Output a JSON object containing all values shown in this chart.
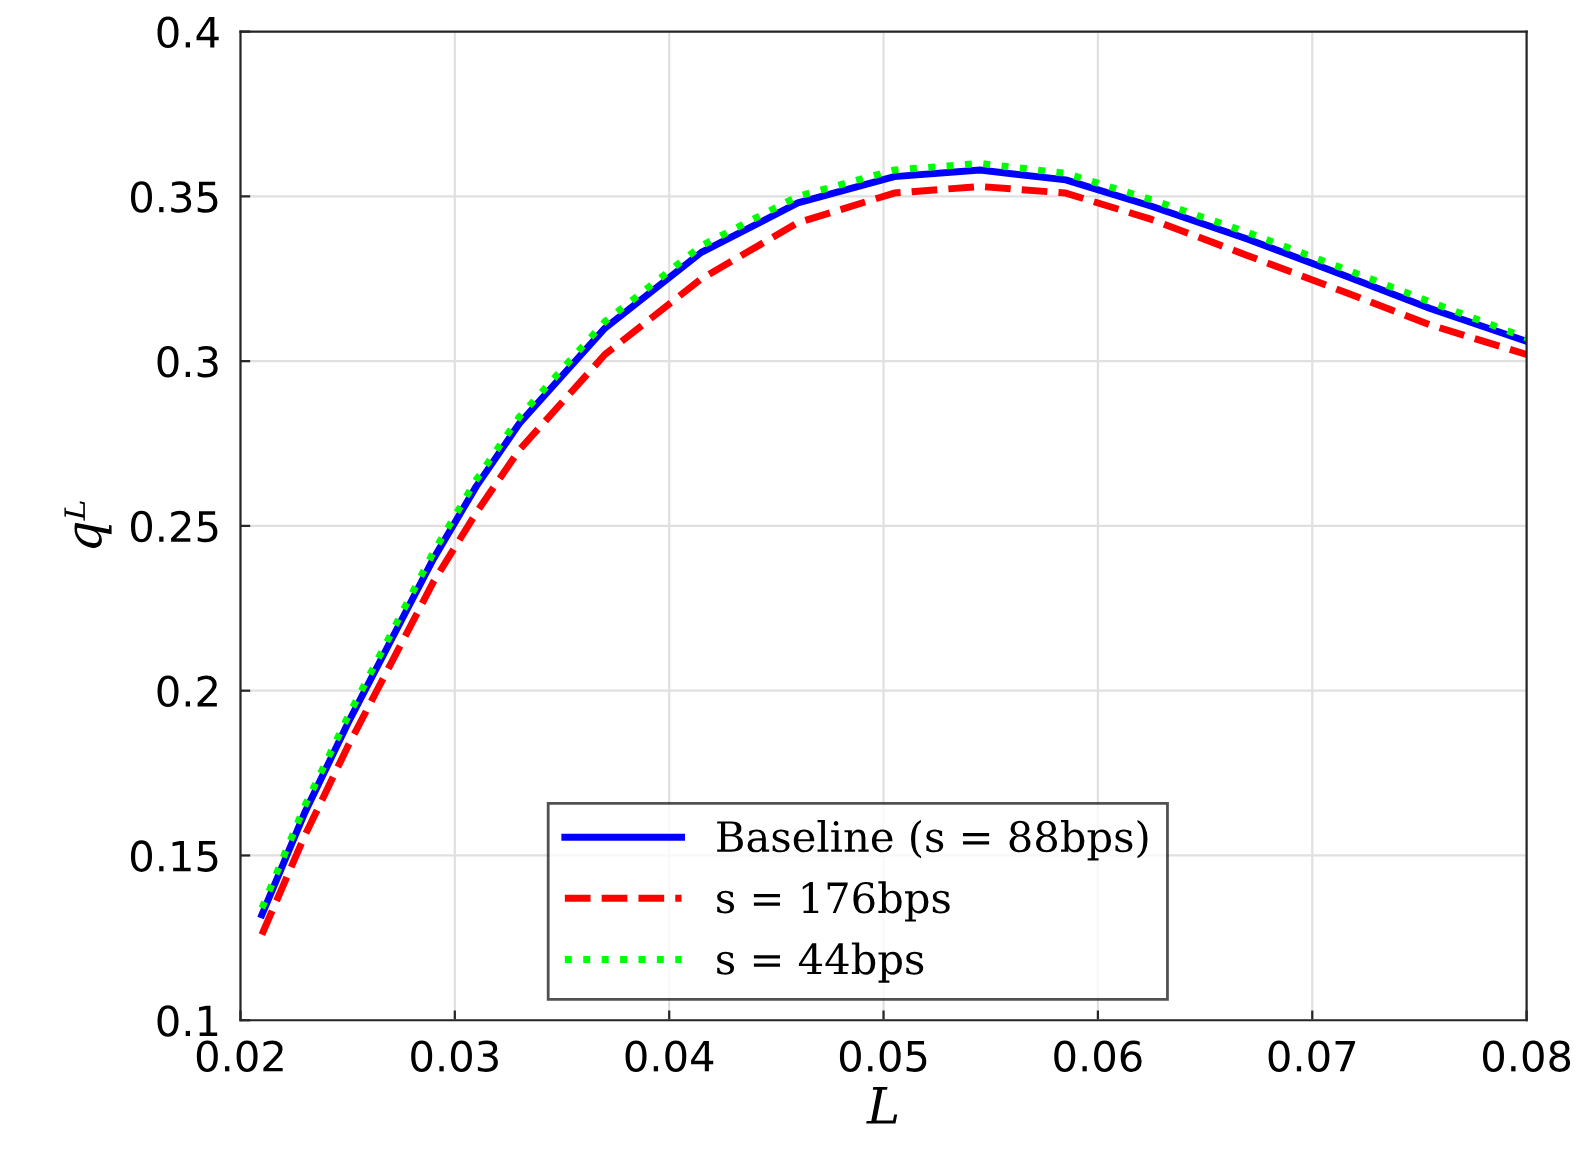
{
  "chart_data": {
    "type": "line",
    "xlabel": "L",
    "ylabel": "qᴸ",
    "x": [
      0.021,
      0.023,
      0.025,
      0.027,
      0.029,
      0.031,
      0.033,
      0.037,
      0.0415,
      0.046,
      0.0505,
      0.0545,
      0.0585,
      0.0625,
      0.067,
      0.0715,
      0.0755,
      0.08
    ],
    "series": [
      {
        "name": "Baseline (s = 88bps)",
        "color": "#0000ff",
        "line_style": "solid",
        "values": [
          0.132,
          0.163,
          0.19,
          0.215,
          0.24,
          0.262,
          0.281,
          0.31,
          0.333,
          0.348,
          0.356,
          0.358,
          0.355,
          0.347,
          0.337,
          0.326,
          0.316,
          0.306
        ]
      },
      {
        "name": "s = 176bps",
        "color": "#ff0000",
        "line_style": "dashed",
        "values": [
          0.126,
          0.156,
          0.183,
          0.208,
          0.233,
          0.254,
          0.273,
          0.302,
          0.325,
          0.342,
          0.351,
          0.353,
          0.351,
          0.343,
          0.332,
          0.321,
          0.311,
          0.302
        ]
      },
      {
        "name": "s = 44bps",
        "color": "#00ff00",
        "line_style": "dotted",
        "values": [
          0.134,
          0.165,
          0.192,
          0.217,
          0.242,
          0.264,
          0.283,
          0.312,
          0.335,
          0.35,
          0.358,
          0.36,
          0.357,
          0.349,
          0.339,
          0.328,
          0.318,
          0.307
        ]
      }
    ],
    "xlim": [
      0.02,
      0.08
    ],
    "xticks": [
      0.02,
      0.03,
      0.04,
      0.05,
      0.06,
      0.07,
      0.08
    ],
    "ylim": [
      0.1,
      0.4
    ],
    "yticks": [
      0.1,
      0.15,
      0.2,
      0.25,
      0.3,
      0.35,
      0.4
    ],
    "grid": true,
    "legend": "bottom right"
  }
}
